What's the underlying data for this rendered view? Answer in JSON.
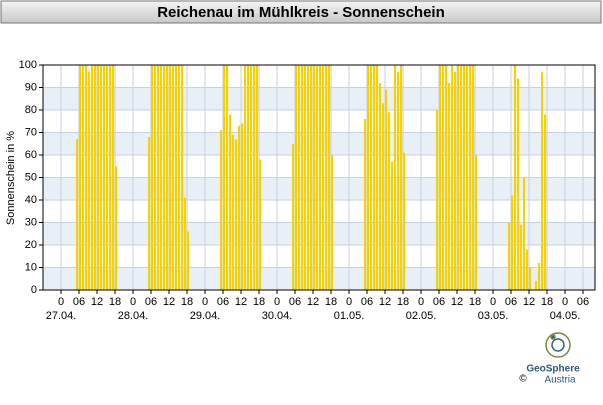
{
  "chart_data": {
    "type": "bar",
    "title": "Reichenau im Mühlkreis - Sonnenschein",
    "y_label": "Sonnenschein in %",
    "color": "#f5d300",
    "grid": true,
    "xlim": [
      -6,
      178
    ],
    "ylim": [
      0,
      100
    ],
    "yticks": [
      0,
      10,
      20,
      30,
      40,
      50,
      60,
      70,
      80,
      90,
      100
    ],
    "xticks": [
      0,
      {
        "value": 6,
        "label": "06"
      },
      12,
      18,
      {
        "value": 24,
        "label": "0"
      },
      {
        "value": 30,
        "label": "06"
      },
      {
        "value": 36,
        "label": "12"
      },
      {
        "value": 42,
        "label": "18"
      },
      {
        "value": 48,
        "label": "0"
      },
      {
        "value": 54,
        "label": "06"
      },
      {
        "value": 60,
        "label": "12"
      },
      {
        "value": 66,
        "label": "18"
      },
      {
        "value": 72,
        "label": "0"
      },
      {
        "value": 78,
        "label": "06"
      },
      {
        "value": 84,
        "label": "12"
      },
      {
        "value": 90,
        "label": "18"
      },
      {
        "value": 96,
        "label": "0"
      },
      {
        "value": 102,
        "label": "06"
      },
      {
        "value": 108,
        "label": "12"
      },
      {
        "value": 114,
        "label": "18"
      },
      {
        "value": 120,
        "label": "0"
      },
      {
        "value": 126,
        "label": "06"
      },
      {
        "value": 132,
        "label": "12"
      },
      {
        "value": 138,
        "label": "18"
      },
      {
        "value": 144,
        "label": "0"
      },
      {
        "value": 150,
        "label": "06"
      },
      {
        "value": 156,
        "label": "12"
      },
      {
        "value": 162,
        "label": "18"
      },
      {
        "value": 168,
        "label": "0"
      },
      {
        "value": 174,
        "label": "06"
      }
    ],
    "date_labels": [
      {
        "value": 0,
        "label": "27.04."
      },
      {
        "value": 24,
        "label": "28.04."
      },
      {
        "value": 48,
        "label": "29.04."
      },
      {
        "value": 72,
        "label": "30.04."
      },
      {
        "value": 96,
        "label": "01.05."
      },
      {
        "value": 120,
        "label": "02.05."
      },
      {
        "value": 144,
        "label": "03.05."
      },
      {
        "value": 168,
        "label": "04.05."
      }
    ],
    "x": [
      5,
      6,
      7,
      8,
      9,
      10,
      11,
      12,
      13,
      14,
      15,
      16,
      17,
      18,
      29,
      30,
      31,
      32,
      33,
      34,
      35,
      36,
      37,
      38,
      39,
      40,
      41,
      42,
      53,
      54,
      55,
      56,
      57,
      58,
      59,
      60,
      61,
      62,
      63,
      64,
      65,
      66,
      77,
      78,
      79,
      80,
      81,
      82,
      83,
      84,
      85,
      86,
      87,
      88,
      89,
      90,
      101,
      102,
      103,
      104,
      105,
      106,
      107,
      108,
      109,
      110,
      111,
      112,
      113,
      114,
      125,
      126,
      127,
      128,
      129,
      130,
      131,
      132,
      133,
      134,
      135,
      136,
      137,
      138,
      149,
      150,
      151,
      152,
      153,
      154,
      155,
      156,
      157,
      158,
      159,
      160,
      161,
      162
    ],
    "values": [
      67,
      100,
      100,
      100,
      97,
      100,
      100,
      100,
      100,
      100,
      100,
      100,
      100,
      55,
      68,
      100,
      100,
      100,
      100,
      100,
      100,
      100,
      100,
      100,
      100,
      100,
      41,
      26,
      71,
      100,
      100,
      78,
      69,
      67,
      73,
      74,
      100,
      100,
      100,
      100,
      100,
      58,
      65,
      100,
      100,
      100,
      100,
      100,
      100,
      100,
      100,
      100,
      100,
      100,
      100,
      60,
      76,
      100,
      100,
      100,
      100,
      92,
      83,
      89,
      79,
      57,
      100,
      97,
      100,
      61,
      80,
      100,
      100,
      100,
      92,
      100,
      97,
      100,
      100,
      100,
      100,
      100,
      100,
      60,
      30,
      42,
      100,
      94,
      29,
      50,
      18,
      10,
      0,
      4,
      12,
      97,
      78,
      0
    ]
  },
  "footer": {
    "brand": "GeoSphere",
    "country": "Austria",
    "copyright": "©"
  }
}
